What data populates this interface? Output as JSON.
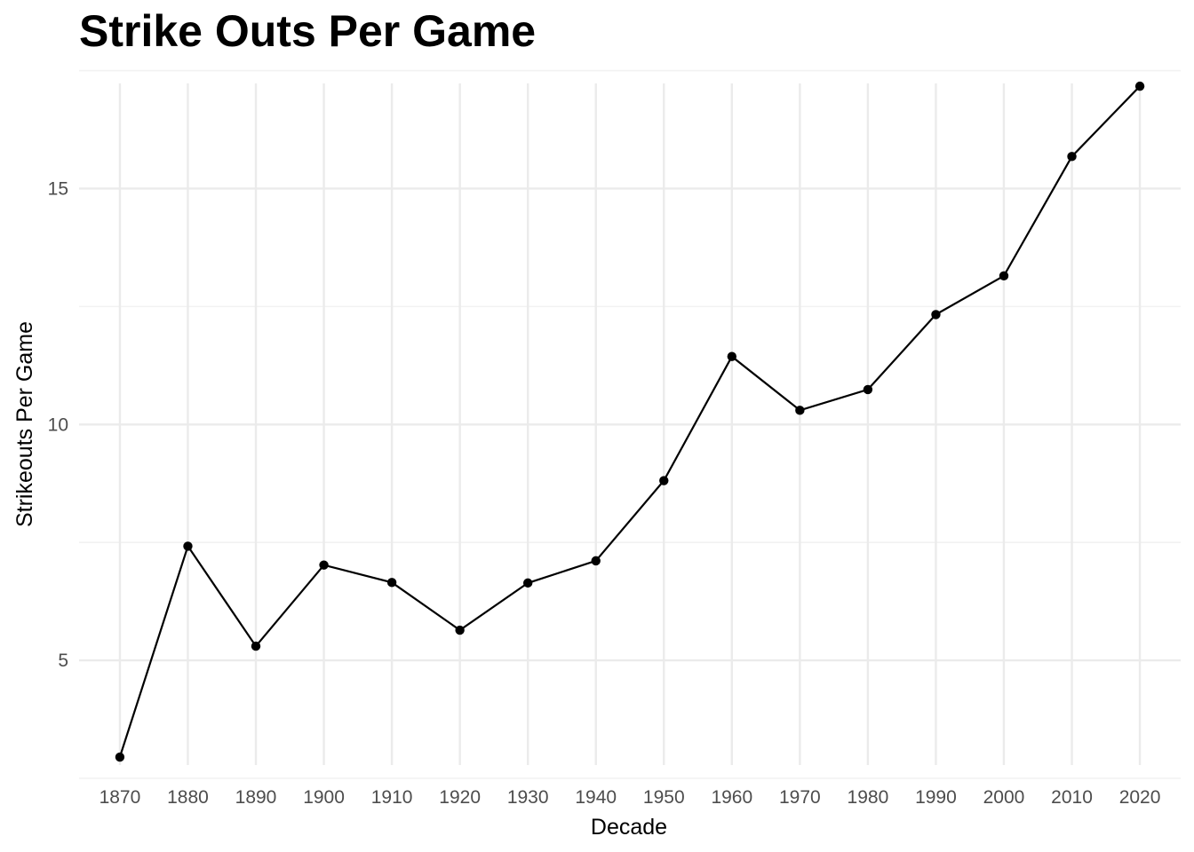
{
  "chart_data": {
    "type": "line",
    "title": "Strike Outs Per Game",
    "xlabel": "Decade",
    "ylabel": "Strikeouts Per Game",
    "x": [
      1870,
      1880,
      1890,
      1900,
      1910,
      1920,
      1930,
      1940,
      1950,
      1960,
      1970,
      1980,
      1990,
      2000,
      2010,
      2020
    ],
    "x_tick_labels": [
      "1870",
      "1880",
      "1890",
      "1900",
      "1910",
      "1920",
      "1930",
      "1940",
      "1950",
      "1960",
      "1970",
      "1980",
      "1990",
      "2000",
      "2010",
      "2020"
    ],
    "y_ticks": [
      5,
      10,
      15
    ],
    "y_tick_labels": [
      "5",
      "10",
      "15"
    ],
    "series": [
      {
        "values": [
          2.95,
          7.42,
          5.3,
          7.02,
          6.65,
          5.64,
          6.64,
          7.11,
          8.81,
          11.44,
          10.3,
          10.74,
          12.33,
          13.15,
          15.68,
          17.17
        ]
      }
    ],
    "xlim": [
      1864,
      2026
    ],
    "ylim": [
      2.48,
      17.53
    ],
    "grid": true,
    "legend": "none",
    "colors": {
      "line": "#000000",
      "grid": "#ebebeb",
      "tick_text": "#4d4d4d"
    }
  }
}
